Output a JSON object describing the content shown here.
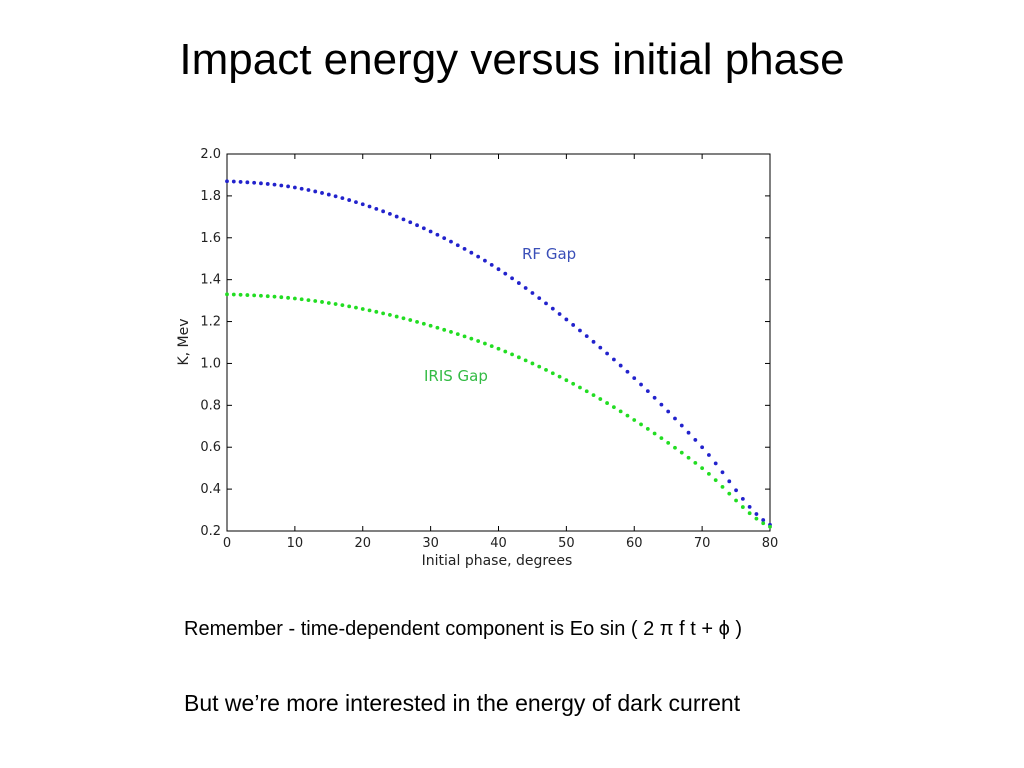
{
  "slide": {
    "title": "Impact energy versus initial phase",
    "note1": "Remember -  time-dependent component is Eo sin ( 2 π f t + ϕ )",
    "note2": "But we’re more interested in the energy of dark current"
  },
  "chart_data": {
    "type": "scatter",
    "title": "",
    "xlabel": "Initial phase, degrees",
    "ylabel": "K, Mev",
    "xlim": [
      0,
      80
    ],
    "ylim": [
      0.2,
      2.0
    ],
    "xticks": [
      0,
      10,
      20,
      30,
      40,
      50,
      60,
      70,
      80
    ],
    "yticks": [
      0.2,
      0.4,
      0.6,
      0.8,
      1.0,
      1.2,
      1.4,
      1.6,
      1.8,
      2.0
    ],
    "xtick_labels": [
      "0",
      "10",
      "20",
      "30",
      "40",
      "50",
      "60",
      "70",
      "80"
    ],
    "ytick_labels": [
      "0.2",
      "0.4",
      "0.6",
      "0.8",
      "1.0",
      "1.2",
      "1.4",
      "1.6",
      "1.8",
      "2.0"
    ],
    "series": [
      {
        "name": "RF Gap",
        "color": "#2222cc",
        "label_color": "#3a4fb8",
        "x": [
          0,
          10,
          20,
          30,
          40,
          50,
          60,
          70,
          80
        ],
        "y": [
          1.87,
          1.84,
          1.76,
          1.63,
          1.45,
          1.21,
          0.93,
          0.6,
          0.23
        ]
      },
      {
        "name": "IRIS Gap",
        "color": "#22dd22",
        "label_color": "#33bb44",
        "x": [
          0,
          10,
          20,
          30,
          40,
          50,
          60,
          70,
          80
        ],
        "y": [
          1.33,
          1.31,
          1.26,
          1.18,
          1.07,
          0.92,
          0.73,
          0.5,
          0.22
        ]
      }
    ]
  }
}
